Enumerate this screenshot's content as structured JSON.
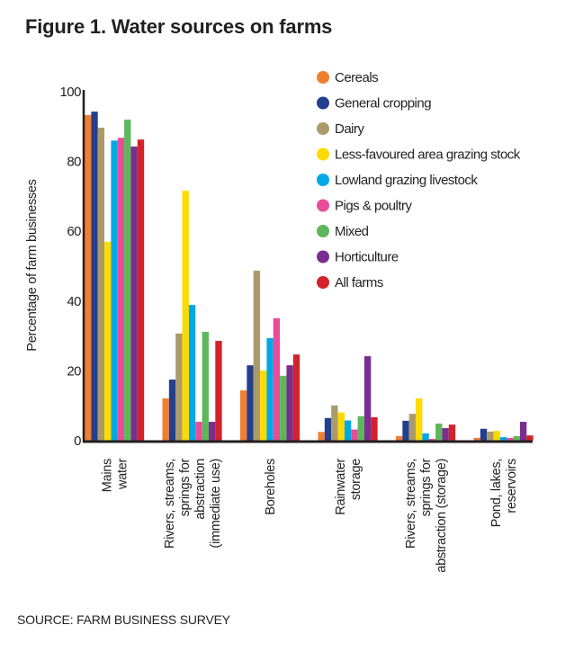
{
  "title": "Figure 1. Water sources on farms",
  "source": "SOURCE: FARM BUSINESS SURVEY",
  "chart_data": {
    "type": "bar",
    "title": "Figure 1. Water sources on farms",
    "xlabel": "",
    "ylabel": "Percentage of farm businesses",
    "ylim": [
      0,
      100
    ],
    "yticks": [
      0,
      20,
      40,
      60,
      80,
      100
    ],
    "ytick_labels": [
      "0",
      "20",
      "40",
      "60",
      "80",
      "100"
    ],
    "grid": false,
    "legend_position": "top-right",
    "categories": [
      [
        "Mains",
        "water"
      ],
      [
        "Rivers, streams,",
        "springs for",
        "abstraction",
        "(immediate use)"
      ],
      [
        "Boreholes"
      ],
      [
        "Rainwater",
        "storage"
      ],
      [
        "Rivers, streams,",
        "springs for",
        "abstraction (storage)"
      ],
      [
        "Pond, lakes,",
        "reservoirs"
      ]
    ],
    "series": [
      {
        "name": "Cereals",
        "color": "#f07f31",
        "values": [
          93.3,
          12.1,
          14.4,
          2.5,
          1.3,
          0.8
        ]
      },
      {
        "name": "General cropping",
        "color": "#233f8d",
        "values": [
          94.3,
          17.5,
          21.6,
          6.5,
          5.7,
          3.4
        ]
      },
      {
        "name": "Dairy",
        "color": "#ab9b6c",
        "values": [
          89.7,
          30.7,
          48.7,
          10.1,
          7.7,
          2.6
        ]
      },
      {
        "name": "Less-favoured area grazing stock",
        "color": "#fddb00",
        "values": [
          57.0,
          71.6,
          20.1,
          8.1,
          12.1,
          2.8
        ]
      },
      {
        "name": "Lowland grazing livestock",
        "color": "#00a9e6",
        "values": [
          86.0,
          38.9,
          29.4,
          5.8,
          2.1,
          1.0
        ]
      },
      {
        "name": "Pigs & poultry",
        "color": "#ea4c9a",
        "values": [
          86.8,
          5.4,
          35.1,
          3.2,
          0.5,
          0.8
        ]
      },
      {
        "name": "Mixed",
        "color": "#5db85b",
        "values": [
          92.0,
          31.2,
          18.6,
          7.0,
          4.9,
          1.3
        ]
      },
      {
        "name": "Horticulture",
        "color": "#7a2e8f",
        "values": [
          84.3,
          5.4,
          21.6,
          24.2,
          3.6,
          5.4
        ]
      },
      {
        "name": "All farms",
        "color": "#d3222a",
        "values": [
          86.3,
          28.6,
          24.7,
          6.7,
          4.6,
          1.5
        ]
      }
    ]
  }
}
